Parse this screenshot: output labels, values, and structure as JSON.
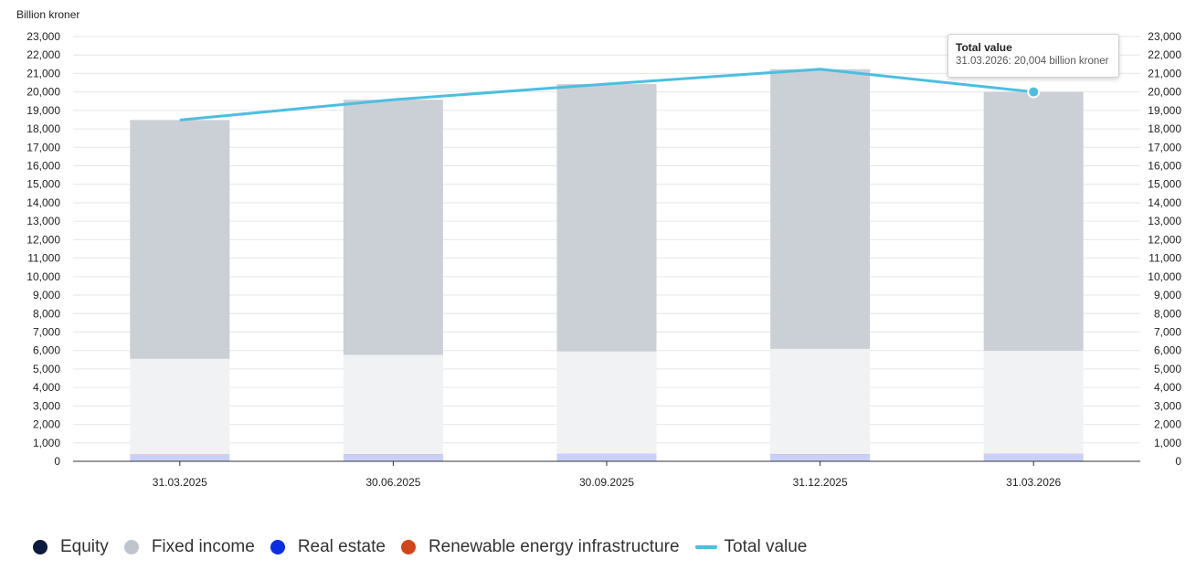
{
  "chart_data": {
    "type": "bar",
    "ylabel": "Billion kroner",
    "ylim": [
      0,
      23000
    ],
    "ytick_step": 1000,
    "yticks": [
      "0",
      "1,000",
      "2,000",
      "3,000",
      "4,000",
      "5,000",
      "6,000",
      "7,000",
      "8,000",
      "9,000",
      "10,000",
      "11,000",
      "12,000",
      "13,000",
      "14,000",
      "15,000",
      "16,000",
      "17,000",
      "18,000",
      "19,000",
      "20,000",
      "21,000",
      "22,000",
      "23,000"
    ],
    "categories": [
      "31.03.2025",
      "30.06.2025",
      "30.09.2025",
      "31.12.2025",
      "31.03.2026"
    ],
    "series": [
      {
        "name": "Real estate",
        "legend_color": "#0a2ee6",
        "bar_color": "#c9d0fa",
        "values": [
          360,
          380,
          400,
          390,
          400
        ]
      },
      {
        "name": "Renewable energy infrastructure",
        "legend_color": "#d0461b",
        "bar_color": "#d0461b",
        "values": [
          10,
          10,
          10,
          10,
          10
        ]
      },
      {
        "name": "Fixed income",
        "legend_color": "#c0c4cc",
        "bar_color": "#f1f2f4",
        "values": [
          5180,
          5370,
          5540,
          5690,
          5570
        ]
      },
      {
        "name": "Equity",
        "legend_color": "#0d1b3e",
        "bar_color": "#cbcfd6",
        "values": [
          12930,
          13820,
          14480,
          15140,
          14024
        ]
      }
    ],
    "line": {
      "name": "Total value",
      "color": "#4bbfe0",
      "values": [
        18480,
        19580,
        20430,
        21230,
        20004
      ]
    },
    "tooltip": {
      "title": "Total value",
      "text": "31.03.2026: 20,004 billion kroner",
      "category_index": 4
    },
    "legend_order": [
      "Equity",
      "Fixed income",
      "Real estate",
      "Renewable energy infrastructure",
      "Total value"
    ]
  }
}
